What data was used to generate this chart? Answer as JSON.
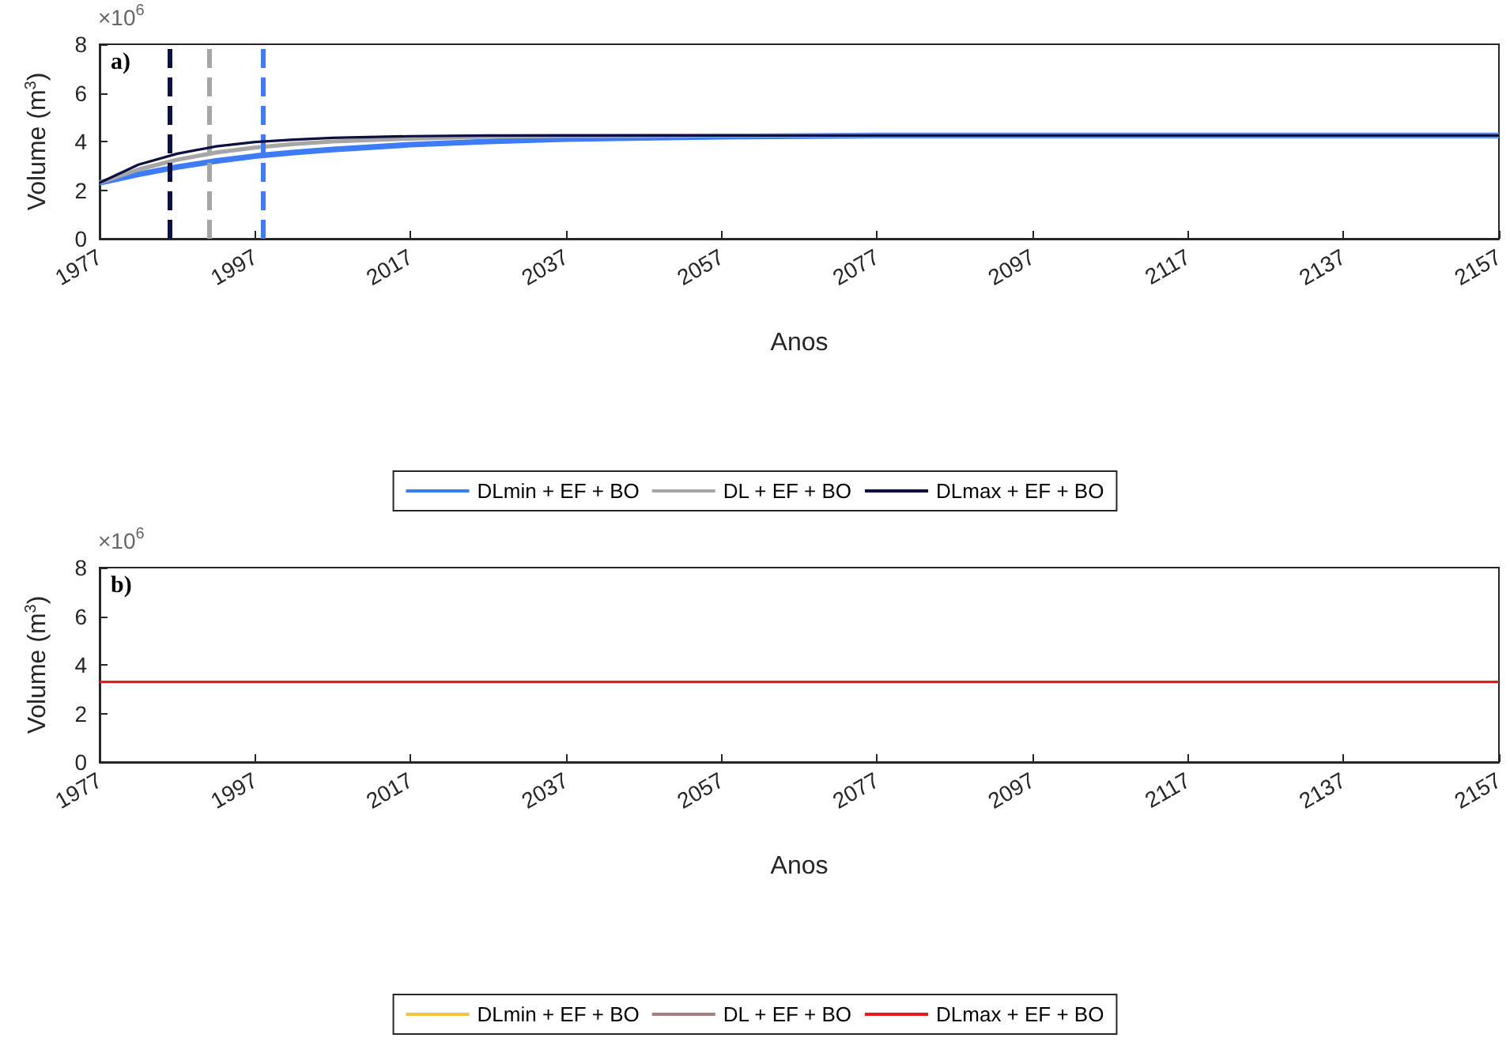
{
  "chart_data": [
    {
      "type": "line",
      "annotations": [
        "a)",
        "×10$^{6}$"
      ],
      "ylabel": "Volume (m$^{3}$)",
      "xlabel": "Anos",
      "x": [
        1977,
        1982,
        1987,
        1992,
        1997,
        2002,
        2007,
        2017,
        2027,
        2037,
        2057,
        2077,
        2157
      ],
      "series": [
        {
          "name": "DLmin + EF + BO",
          "color": "#3d7cf5",
          "values": [
            2.3,
            2.65,
            2.95,
            3.2,
            3.4,
            3.55,
            3.67,
            3.87,
            4.0,
            4.1,
            4.2,
            4.25,
            4.25
          ]
        },
        {
          "name": "DL + EF + BO",
          "color": "#a6a6a6",
          "values": [
            2.3,
            2.85,
            3.25,
            3.55,
            3.75,
            3.9,
            4.0,
            4.12,
            4.2,
            4.23,
            4.25,
            4.25,
            4.25
          ]
        },
        {
          "name": "DLmax + EF + BO",
          "color": "#0b1040",
          "values": [
            2.3,
            3.05,
            3.5,
            3.8,
            3.98,
            4.08,
            4.15,
            4.22,
            4.25,
            4.25,
            4.25,
            4.25,
            4.25
          ]
        }
      ],
      "xlim": [
        1977,
        2157
      ],
      "xticks": [
        1977,
        1997,
        2017,
        2037,
        2057,
        2077,
        2097,
        2117,
        2137,
        2157
      ],
      "ylim": [
        0,
        8
      ],
      "yticks": [
        0,
        2,
        4,
        6,
        8
      ],
      "ref_lines": [
        {
          "axis": "x",
          "value": 1986,
          "color": "#0b1040",
          "line_style": "dashed"
        },
        {
          "axis": "x",
          "value": 1991,
          "color": "#a6a6a6",
          "line_style": "dashed"
        },
        {
          "axis": "x",
          "value": 1998,
          "color": "#3d7cf5",
          "line_style": "dashed"
        }
      ],
      "grid": false,
      "legend": "bottom",
      "marker": "none",
      "line_style": "solid"
    },
    {
      "type": "line",
      "annotations": [
        "b)",
        "×10$^{6}$"
      ],
      "ylabel": "Volume (m$^{3}$)",
      "xlabel": "Anos",
      "x": [
        1977,
        2157
      ],
      "series": [
        {
          "name": "DLmin + EF + BO",
          "color": "#f5c242",
          "values": [
            null,
            null
          ]
        },
        {
          "name": "DL + EF + BO",
          "color": "#a47f7f",
          "values": [
            null,
            null
          ]
        },
        {
          "name": "DLmax + EF + BO",
          "color": "#e41a1c",
          "values": [
            3.3,
            3.3
          ]
        }
      ],
      "xlim": [
        1977,
        2157
      ],
      "xticks": [
        1977,
        1997,
        2017,
        2037,
        2057,
        2077,
        2097,
        2117,
        2137,
        2157
      ],
      "ylim": [
        0,
        8
      ],
      "yticks": [
        0,
        2,
        4,
        6,
        8
      ],
      "grid": false,
      "legend": "bottom",
      "marker": "none",
      "line_style": "solid"
    }
  ]
}
